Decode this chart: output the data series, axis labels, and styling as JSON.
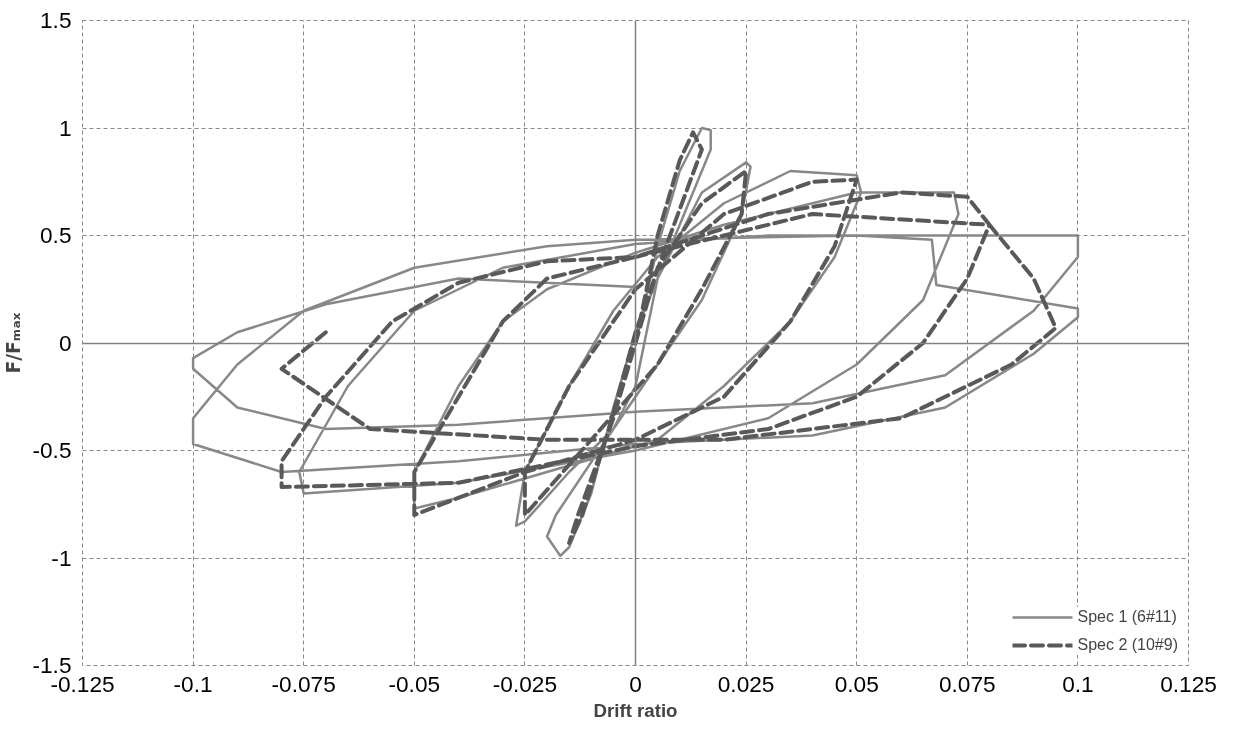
{
  "chart_data": {
    "type": "line",
    "xlabel": "Drift ratio",
    "ylabel": "F/Fₘₐₓ",
    "xlim": [
      -0.125,
      0.125
    ],
    "ylim": [
      -1.5,
      1.5
    ],
    "xticks": [
      -0.125,
      -0.1,
      -0.075,
      -0.05,
      -0.025,
      0,
      0.025,
      0.05,
      0.075,
      0.1,
      0.125
    ],
    "yticks": [
      -1.5,
      -1,
      -0.5,
      0,
      0.5,
      1,
      1.5
    ],
    "grid": true,
    "legend": "bottom right",
    "series": [
      {
        "name": "Spec 1 (6#11)",
        "color": "#888888",
        "line_style": "solid",
        "x": [
          0,
          0.005,
          0.01,
          0.015,
          0.017,
          0.017,
          0.005,
          0,
          -0.005,
          -0.01,
          -0.015,
          -0.017,
          -0.02,
          -0.018,
          -0.005,
          0,
          0.005,
          0.015,
          0.025,
          0.026,
          0.024,
          0.015,
          0.005,
          -0.005,
          -0.015,
          -0.025,
          -0.027,
          -0.025,
          -0.015,
          -0.005,
          0.005,
          0.02,
          0.035,
          0.05,
          0.051,
          0.045,
          0.035,
          0.02,
          0.005,
          -0.02,
          -0.04,
          -0.05,
          -0.05,
          -0.04,
          -0.03,
          -0.02,
          0,
          0.02,
          0.05,
          0.072,
          0.073,
          0.065,
          0.05,
          0.03,
          0,
          -0.04,
          -0.075,
          -0.076,
          -0.065,
          -0.05,
          -0.03,
          0,
          0.03,
          0.05,
          0.067,
          0.068,
          0.1,
          0.1,
          0.09,
          0.07,
          0.04,
          0,
          -0.04,
          -0.08,
          -0.1,
          -0.1,
          -0.09,
          -0.075,
          -0.05,
          -0.02,
          0,
          0.05,
          0.1,
          0.1,
          0.09,
          0.07,
          0.04,
          0,
          -0.04,
          -0.07,
          -0.09,
          -0.1,
          -0.1,
          -0.09,
          -0.07,
          -0.04,
          0
        ],
        "values": [
          0,
          0.45,
          0.8,
          1.0,
          0.99,
          0.9,
          0.3,
          0.05,
          -0.3,
          -0.7,
          -0.95,
          -0.99,
          -0.9,
          -0.8,
          -0.4,
          -0.2,
          0.3,
          0.7,
          0.84,
          0.82,
          0.6,
          0.2,
          -0.1,
          -0.4,
          -0.6,
          -0.83,
          -0.85,
          -0.6,
          -0.2,
          0.15,
          0.4,
          0.65,
          0.8,
          0.78,
          0.7,
          0.4,
          0.1,
          -0.2,
          -0.45,
          -0.6,
          -0.72,
          -0.77,
          -0.6,
          -0.2,
          0.1,
          0.25,
          0.42,
          0.55,
          0.7,
          0.7,
          0.6,
          0.2,
          -0.1,
          -0.35,
          -0.5,
          -0.65,
          -0.7,
          -0.6,
          -0.2,
          0.15,
          0.35,
          0.46,
          0.5,
          0.5,
          0.48,
          0.27,
          0.16,
          0.12,
          -0.05,
          -0.3,
          -0.43,
          -0.47,
          -0.55,
          -0.6,
          -0.47,
          -0.35,
          -0.1,
          0.15,
          0.35,
          0.45,
          0.48,
          0.5,
          0.5,
          0.4,
          0.15,
          -0.15,
          -0.28,
          -0.32,
          -0.38,
          -0.4,
          -0.3,
          -0.12,
          -0.07,
          0.05,
          0.18,
          0.3,
          0.26
        ]
      },
      {
        "name": "Spec 2 (10#9)",
        "color": "#595959",
        "line_style": "dashed",
        "x": [
          0,
          0.005,
          0.01,
          0.013,
          0.015,
          0.006,
          0,
          -0.006,
          -0.012,
          -0.015,
          -0.013,
          -0.005,
          0.005,
          0.015,
          0.025,
          0.024,
          0.015,
          0.005,
          -0.01,
          -0.025,
          -0.025,
          -0.015,
          0,
          0.02,
          0.04,
          0.05,
          0.045,
          0.035,
          0.02,
          0,
          -0.025,
          -0.05,
          -0.05,
          -0.04,
          -0.03,
          -0.02,
          0,
          0.03,
          0.06,
          0.075,
          0.08,
          0.075,
          0.065,
          0.05,
          0.03,
          0,
          -0.04,
          -0.08,
          -0.08,
          -0.07,
          -0.055,
          -0.04,
          -0.02,
          0,
          0.04,
          0.08,
          0.09,
          0.095,
          0.085,
          0.06,
          0.02,
          -0.02,
          -0.06,
          -0.08,
          -0.07
        ],
        "values": [
          0,
          0.5,
          0.85,
          0.98,
          0.9,
          0.4,
          0.05,
          -0.4,
          -0.8,
          -0.93,
          -0.8,
          -0.35,
          0.35,
          0.65,
          0.8,
          0.6,
          0.25,
          -0.1,
          -0.45,
          -0.8,
          -0.6,
          -0.2,
          0.25,
          0.6,
          0.75,
          0.76,
          0.45,
          0.1,
          -0.25,
          -0.45,
          -0.6,
          -0.8,
          -0.6,
          -0.25,
          0.1,
          0.3,
          0.4,
          0.6,
          0.7,
          0.68,
          0.55,
          0.3,
          0,
          -0.25,
          -0.4,
          -0.48,
          -0.65,
          -0.67,
          -0.55,
          -0.25,
          0.1,
          0.28,
          0.38,
          0.4,
          0.6,
          0.55,
          0.3,
          0.07,
          -0.1,
          -0.35,
          -0.45,
          -0.45,
          -0.4,
          -0.12,
          0.05
        ]
      }
    ]
  }
}
